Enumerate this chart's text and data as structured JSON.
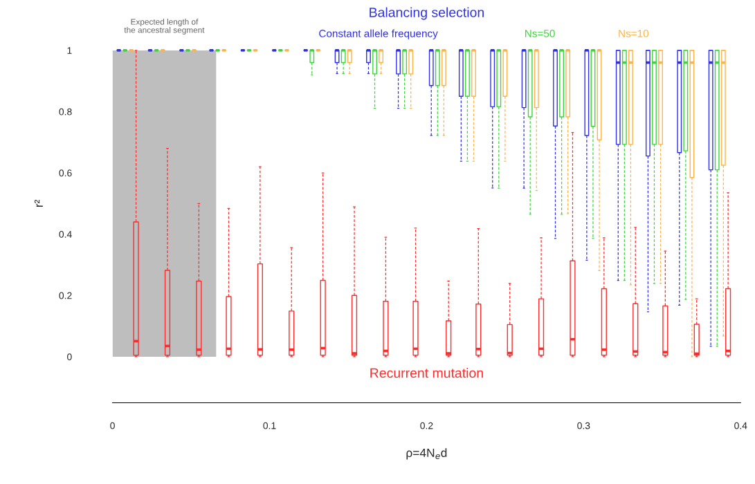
{
  "chart_data": {
    "type": "box",
    "xlabel": "ρ=4N$_{e}$d",
    "ylabel": "r²",
    "xlim": [
      0,
      0.4
    ],
    "xticks": [
      0,
      0.1,
      0.2,
      0.3,
      0.4
    ],
    "ylim": [
      0,
      1
    ],
    "yticks": [
      0,
      0.2,
      0.4,
      0.6,
      0.8,
      1
    ],
    "annotations": [
      "Balancing selection"
    ],
    "bands": [
      {
        "axis": "x",
        "from": 0,
        "to": 0.066,
        "label": "Expected length of\nthe ancestral segment",
        "color": "#bebebe"
      }
    ],
    "series": [
      {
        "name": "Recurrent mutation",
        "color": "#ff2a2a",
        "x": [
          0.015,
          0.035,
          0.055,
          0.074,
          0.094,
          0.114,
          0.134,
          0.154,
          0.174,
          0.193,
          0.214,
          0.233,
          0.253,
          0.273,
          0.293,
          0.313,
          0.333,
          0.352,
          0.372,
          0.392
        ],
        "boxes": [
          {
            "low": 0,
            "q1": 0.005,
            "median": 0.051,
            "q3": 0.44,
            "high": 1
          },
          {
            "low": 0,
            "q1": 0.005,
            "median": 0.035,
            "q3": 0.282,
            "high": 0.68
          },
          {
            "low": 0,
            "q1": 0.005,
            "median": 0.023,
            "q3": 0.247,
            "high": 0.5
          },
          {
            "low": 0,
            "q1": 0.005,
            "median": 0.026,
            "q3": 0.196,
            "high": 0.484
          },
          {
            "low": 0,
            "q1": 0.005,
            "median": 0.024,
            "q3": 0.303,
            "high": 0.62
          },
          {
            "low": 0,
            "q1": 0.005,
            "median": 0.023,
            "q3": 0.149,
            "high": 0.356
          },
          {
            "low": 0,
            "q1": 0.005,
            "median": 0.028,
            "q3": 0.249,
            "high": 0.6
          },
          {
            "low": 0,
            "q1": 0.005,
            "median": 0.011,
            "q3": 0.2,
            "high": 0.489
          },
          {
            "low": 0,
            "q1": 0.005,
            "median": 0.019,
            "q3": 0.181,
            "high": 0.39
          },
          {
            "low": 0,
            "q1": 0.005,
            "median": 0.026,
            "q3": 0.181,
            "high": 0.42
          },
          {
            "low": 0,
            "q1": 0.005,
            "median": 0.011,
            "q3": 0.117,
            "high": 0.247
          },
          {
            "low": 0,
            "q1": 0.005,
            "median": 0.025,
            "q3": 0.172,
            "high": 0.418
          },
          {
            "low": 0,
            "q1": 0.005,
            "median": 0.012,
            "q3": 0.105,
            "high": 0.239
          },
          {
            "low": 0,
            "q1": 0.005,
            "median": 0.026,
            "q3": 0.189,
            "high": 0.388
          },
          {
            "low": 0,
            "q1": 0.005,
            "median": 0.057,
            "q3": 0.313,
            "high": 0.732
          },
          {
            "low": 0,
            "q1": 0.005,
            "median": 0.023,
            "q3": 0.222,
            "high": 0.388
          },
          {
            "low": 0,
            "q1": 0.005,
            "median": 0.017,
            "q3": 0.173,
            "high": 0.422
          },
          {
            "low": 0,
            "q1": 0.005,
            "median": 0.015,
            "q3": 0.166,
            "high": 0.345
          },
          {
            "low": 0,
            "q1": 0.005,
            "median": 0.01,
            "q3": 0.106,
            "high": 0.189
          },
          {
            "low": 0,
            "q1": 0.005,
            "median": 0.019,
            "q3": 0.222,
            "high": 0.535
          }
        ]
      },
      {
        "name": "Constant allele frequency",
        "color": "#2f2ff0",
        "x": [
          0.004,
          0.024,
          0.044,
          0.063,
          0.083,
          0.103,
          0.123,
          0.143,
          0.163,
          0.182,
          0.203,
          0.222,
          0.242,
          0.262,
          0.282,
          0.302,
          0.322,
          0.341,
          0.361,
          0.381
        ],
        "boxes": [
          {
            "low": 1,
            "q1": 1,
            "median": 1,
            "q3": 1,
            "high": 1
          },
          {
            "low": 1,
            "q1": 1,
            "median": 1,
            "q3": 1,
            "high": 1
          },
          {
            "low": 1,
            "q1": 1,
            "median": 1,
            "q3": 1,
            "high": 1
          },
          {
            "low": 1,
            "q1": 1,
            "median": 1,
            "q3": 1,
            "high": 1
          },
          {
            "low": 1,
            "q1": 1,
            "median": 1,
            "q3": 1,
            "high": 1
          },
          {
            "low": 1,
            "q1": 1,
            "median": 1,
            "q3": 1,
            "high": 1
          },
          {
            "low": 1,
            "q1": 1,
            "median": 1,
            "q3": 1,
            "high": 1
          },
          {
            "low": 0.924,
            "q1": 0.96,
            "median": 1,
            "q3": 1,
            "high": 1
          },
          {
            "low": 0.924,
            "q1": 0.96,
            "median": 1,
            "q3": 1,
            "high": 1
          },
          {
            "low": 0.811,
            "q1": 0.923,
            "median": 1,
            "q3": 1,
            "high": 1
          },
          {
            "low": 0.722,
            "q1": 0.885,
            "median": 1,
            "q3": 1,
            "high": 1
          },
          {
            "low": 0.638,
            "q1": 0.85,
            "median": 1,
            "q3": 1,
            "high": 1
          },
          {
            "low": 0.551,
            "q1": 0.816,
            "median": 1,
            "q3": 1,
            "high": 1
          },
          {
            "low": 0.55,
            "q1": 0.813,
            "median": 1,
            "q3": 1,
            "high": 1
          },
          {
            "low": 0.386,
            "q1": 0.753,
            "median": 1,
            "q3": 1,
            "high": 1
          },
          {
            "low": 0.315,
            "q1": 0.722,
            "median": 1,
            "q3": 1,
            "high": 1
          },
          {
            "low": 0.249,
            "q1": 0.693,
            "median": 0.96,
            "q3": 1,
            "high": 1
          },
          {
            "low": 0.147,
            "q1": 0.655,
            "median": 0.96,
            "q3": 1,
            "high": 1
          },
          {
            "low": 0.168,
            "q1": 0.666,
            "median": 0.96,
            "q3": 1,
            "high": 1
          },
          {
            "low": 0.034,
            "q1": 0.61,
            "median": 0.96,
            "q3": 1,
            "high": 1
          }
        ]
      },
      {
        "name": "Ns=50",
        "color": "#3ad63a",
        "x": [
          0.008,
          0.028,
          0.048,
          0.067,
          0.087,
          0.107,
          0.127,
          0.147,
          0.167,
          0.186,
          0.207,
          0.226,
          0.246,
          0.266,
          0.286,
          0.306,
          0.326,
          0.345,
          0.365,
          0.385
        ],
        "boxes": [
          {
            "low": 1,
            "q1": 1,
            "median": 1,
            "q3": 1,
            "high": 1
          },
          {
            "low": 1,
            "q1": 1,
            "median": 1,
            "q3": 1,
            "high": 1
          },
          {
            "low": 1,
            "q1": 1,
            "median": 1,
            "q3": 1,
            "high": 1
          },
          {
            "low": 1,
            "q1": 1,
            "median": 1,
            "q3": 1,
            "high": 1
          },
          {
            "low": 1,
            "q1": 1,
            "median": 1,
            "q3": 1,
            "high": 1
          },
          {
            "low": 1,
            "q1": 1,
            "median": 1,
            "q3": 1,
            "high": 1
          },
          {
            "low": 0.92,
            "q1": 0.96,
            "median": 1,
            "q3": 1,
            "high": 1
          },
          {
            "low": 0.924,
            "q1": 0.96,
            "median": 1,
            "q3": 1,
            "high": 1
          },
          {
            "low": 0.811,
            "q1": 0.923,
            "median": 1,
            "q3": 1,
            "high": 1
          },
          {
            "low": 0.811,
            "q1": 0.923,
            "median": 1,
            "q3": 1,
            "high": 1
          },
          {
            "low": 0.722,
            "q1": 0.885,
            "median": 1,
            "q3": 1,
            "high": 1
          },
          {
            "low": 0.638,
            "q1": 0.85,
            "median": 1,
            "q3": 1,
            "high": 1
          },
          {
            "low": 0.55,
            "q1": 0.816,
            "median": 1,
            "q3": 1,
            "high": 1
          },
          {
            "low": 0.465,
            "q1": 0.783,
            "median": 1,
            "q3": 1,
            "high": 1
          },
          {
            "low": 0.465,
            "q1": 0.783,
            "median": 1,
            "q3": 1,
            "high": 1
          },
          {
            "low": 0.386,
            "q1": 0.752,
            "median": 1,
            "q3": 1,
            "high": 1
          },
          {
            "low": 0.249,
            "q1": 0.693,
            "median": 0.96,
            "q3": 1,
            "high": 1
          },
          {
            "low": 0.239,
            "q1": 0.693,
            "median": 0.96,
            "q3": 1,
            "high": 1
          },
          {
            "low": 0.187,
            "q1": 0.672,
            "median": 0.96,
            "q3": 1,
            "high": 1
          },
          {
            "low": 0.034,
            "q1": 0.61,
            "median": 0.96,
            "q3": 1,
            "high": 1
          }
        ]
      },
      {
        "name": "Ns=10",
        "color": "#ffb347",
        "x": [
          0.012,
          0.032,
          0.052,
          0.071,
          0.091,
          0.111,
          0.131,
          0.151,
          0.171,
          0.19,
          0.211,
          0.23,
          0.25,
          0.27,
          0.29,
          0.31,
          0.33,
          0.349,
          0.369,
          0.389
        ],
        "boxes": [
          {
            "low": 1,
            "q1": 1,
            "median": 1,
            "q3": 1,
            "high": 1
          },
          {
            "low": 1,
            "q1": 1,
            "median": 1,
            "q3": 1,
            "high": 1
          },
          {
            "low": 1,
            "q1": 1,
            "median": 1,
            "q3": 1,
            "high": 1
          },
          {
            "low": 1,
            "q1": 1,
            "median": 1,
            "q3": 1,
            "high": 1
          },
          {
            "low": 1,
            "q1": 1,
            "median": 1,
            "q3": 1,
            "high": 1
          },
          {
            "low": 1,
            "q1": 1,
            "median": 1,
            "q3": 1,
            "high": 1
          },
          {
            "low": 1,
            "q1": 1,
            "median": 1,
            "q3": 1,
            "high": 1
          },
          {
            "low": 0.924,
            "q1": 0.96,
            "median": 1,
            "q3": 1,
            "high": 1
          },
          {
            "low": 0.924,
            "q1": 0.96,
            "median": 1,
            "q3": 1,
            "high": 1
          },
          {
            "low": 0.811,
            "q1": 0.923,
            "median": 1,
            "q3": 1,
            "high": 1
          },
          {
            "low": 0.722,
            "q1": 0.885,
            "median": 1,
            "q3": 1,
            "high": 1
          },
          {
            "low": 0.638,
            "q1": 0.85,
            "median": 1,
            "q3": 1,
            "high": 1
          },
          {
            "low": 0.638,
            "q1": 0.85,
            "median": 1,
            "q3": 1,
            "high": 1
          },
          {
            "low": 0.542,
            "q1": 0.813,
            "median": 1,
            "q3": 1,
            "high": 1
          },
          {
            "low": 0.467,
            "q1": 0.783,
            "median": 1,
            "q3": 1,
            "high": 1
          },
          {
            "low": 0.281,
            "q1": 0.708,
            "median": 1,
            "q3": 1,
            "high": 1
          },
          {
            "low": 0.235,
            "q1": 0.693,
            "median": 0.96,
            "q3": 1,
            "high": 1
          },
          {
            "low": 0.239,
            "q1": 0.693,
            "median": 0.96,
            "q3": 1,
            "high": 1
          },
          {
            "low": 0,
            "q1": 0.585,
            "median": 0.96,
            "q3": 1,
            "high": 1
          },
          {
            "low": 0.068,
            "q1": 0.625,
            "median": 0.96,
            "q3": 1,
            "high": 1
          }
        ]
      }
    ]
  }
}
